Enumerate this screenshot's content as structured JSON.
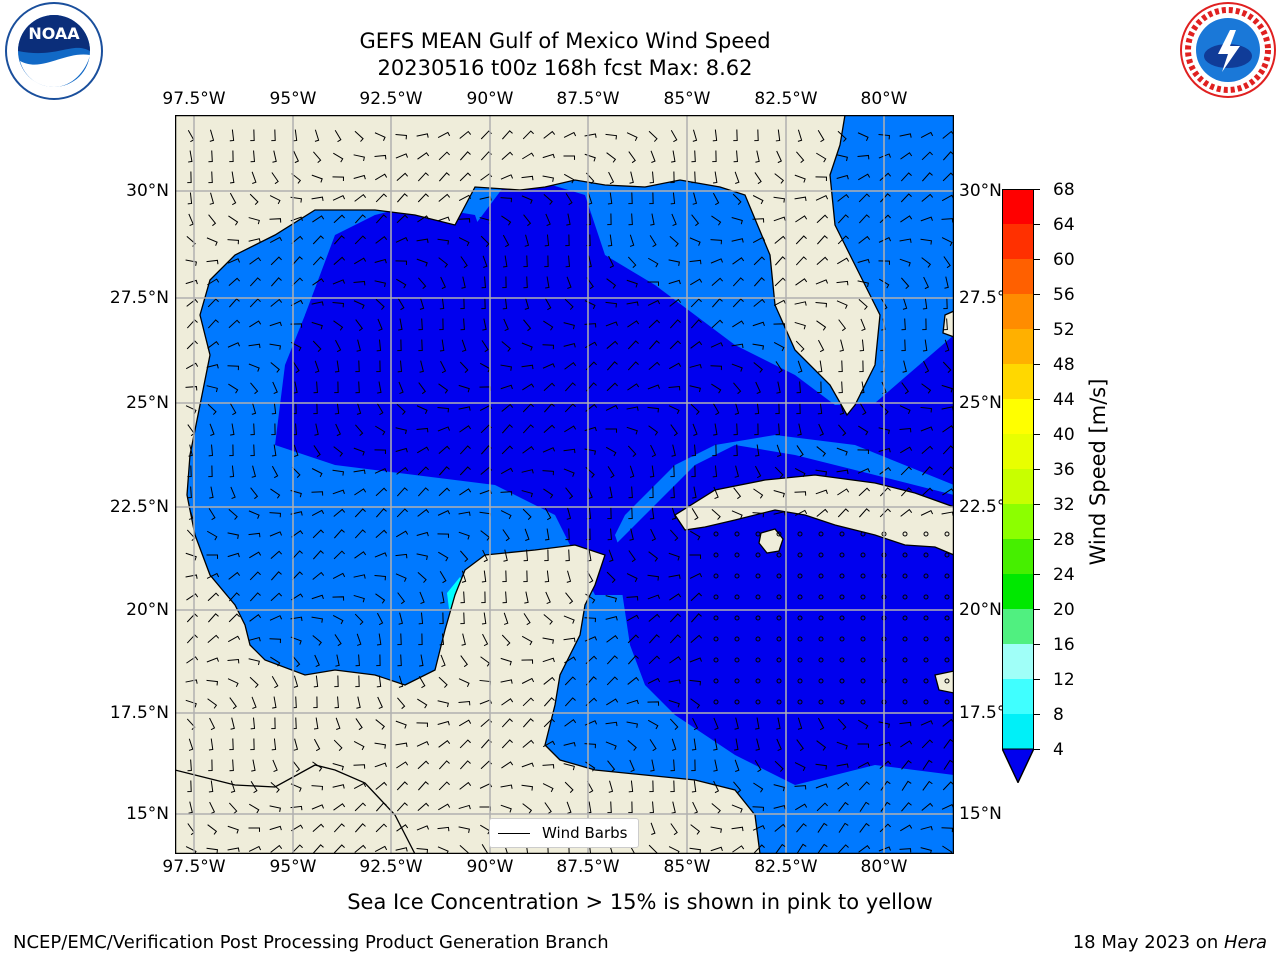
{
  "title": {
    "line1": "GEFS MEAN Gulf of Mexico Wind Speed",
    "line2": "20230516 t00z 168h fcst   Max: 8.62"
  },
  "axes": {
    "lon_labels": [
      "97.5°W",
      "95°W",
      "92.5°W",
      "90°W",
      "87.5°W",
      "85°W",
      "82.5°W",
      "80°W"
    ],
    "lat_labels": [
      "30°N",
      "27.5°N",
      "25°N",
      "22.5°N",
      "20°N",
      "17.5°N",
      "15°N"
    ]
  },
  "colors": {
    "land": "#efedda",
    "wind_4_8": "#0079ff",
    "wind_below_4": "#0000ee",
    "wind_8_12": "#00ffff",
    "grid": "#b0b0b0"
  },
  "colorbar": {
    "label": "Wind Speed [m/s]",
    "ticks": [
      "68",
      "64",
      "60",
      "56",
      "52",
      "48",
      "44",
      "40",
      "36",
      "32",
      "28",
      "24",
      "20",
      "16",
      "12",
      "8",
      "4"
    ],
    "colors": [
      "#ff0000",
      "#ff3000",
      "#ff6000",
      "#ff8c00",
      "#ffb000",
      "#ffd800",
      "#ffff00",
      "#e8ff00",
      "#c8ff00",
      "#8cff00",
      "#46ef00",
      "#00e800",
      "#50f080",
      "#a0fff8",
      "#40ffff",
      "#00f0f8",
      "#0070ff"
    ],
    "extend_color": "#0000ee"
  },
  "legend": {
    "label": "Wind Barbs"
  },
  "note": "Sea Ice Concentration > 15% is shown in pink to yellow",
  "footer": {
    "left": "NCEP/EMC/Verification Post Processing Product Generation Branch",
    "right_date": "18 May 2023 on ",
    "right_host": "Hera"
  },
  "logos": {
    "left": "NOAA",
    "right": "NATIONAL WEATHER SERVICE"
  }
}
